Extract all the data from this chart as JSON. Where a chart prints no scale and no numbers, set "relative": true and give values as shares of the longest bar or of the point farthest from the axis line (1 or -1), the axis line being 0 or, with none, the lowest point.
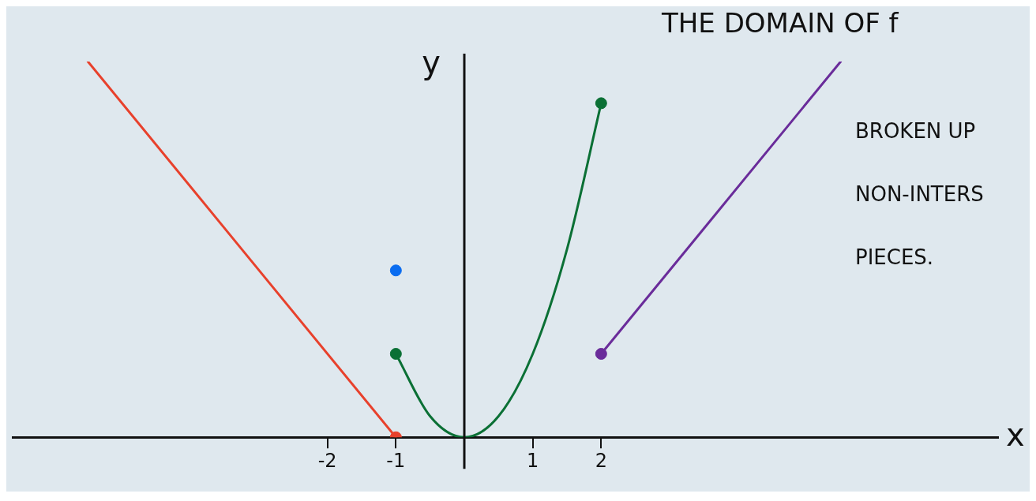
{
  "chart_data": {
    "type": "line",
    "title": "THE DOMAIN OF f",
    "xlabel": "x",
    "ylabel": "y",
    "annotations": [
      "BROKEN UP NON-INTERS PIECES."
    ],
    "relative": true,
    "xlim": [
      -6.6,
      7.8
    ],
    "xticks": [
      -2,
      -1,
      1,
      2
    ],
    "grid": false,
    "legend": false,
    "series": [
      {
        "type": "line",
        "color": "#e8412c",
        "x": [
          -5.5,
          -1
        ],
        "values": [
          1,
          0
        ],
        "marker": "none"
      },
      {
        "type": "line",
        "color": "#0b7035",
        "x": [
          -1,
          -0.5,
          0,
          0.5,
          1,
          1.5,
          2
        ],
        "values": [
          0.222,
          0.056,
          0,
          0.056,
          0.222,
          0.5,
          0.889
        ],
        "marker": "none"
      },
      {
        "type": "line",
        "color": "#6a2c9a",
        "x": [
          2,
          5.5
        ],
        "values": [
          0.222,
          1
        ],
        "marker": "none"
      },
      {
        "type": "scatter",
        "colors": [
          "#e8412c",
          "#0b7035",
          "#0a6cf0",
          "#0b7035",
          "#6a2c9a"
        ],
        "x": [
          -1,
          -1,
          -1,
          2,
          2
        ],
        "values": [
          0,
          0.222,
          0.444,
          0.889,
          0.222
        ],
        "marker": "circle"
      }
    ]
  }
}
